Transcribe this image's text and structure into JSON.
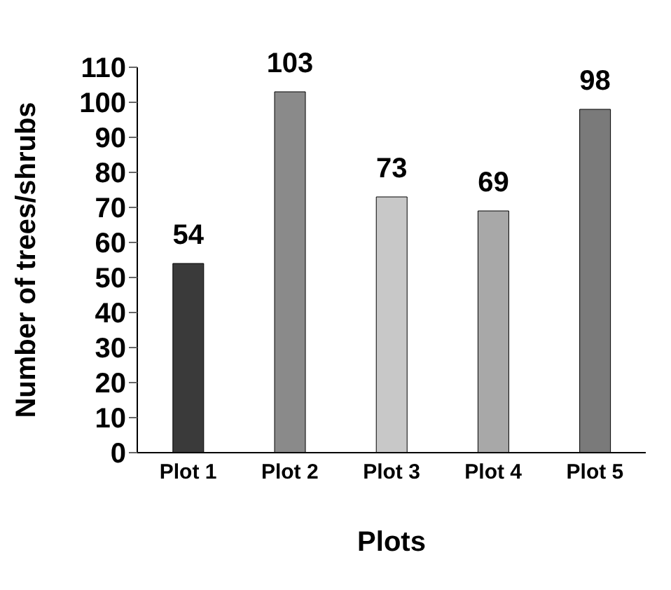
{
  "chart_data": {
    "type": "bar",
    "xlabel": "Plots",
    "ylabel": "Number of trees/shrubs",
    "categories": [
      "Plot 1",
      "Plot 2",
      "Plot 3",
      "Plot 4",
      "Plot 5"
    ],
    "values": [
      54,
      103,
      73,
      69,
      98
    ],
    "colors": [
      "#3a3a3a",
      "#8a8a8a",
      "#c8c8c8",
      "#a8a8a8",
      "#7a7a7a"
    ],
    "ylim": [
      0,
      110
    ],
    "yticks": [
      0,
      10,
      20,
      30,
      40,
      50,
      60,
      70,
      80,
      90,
      100,
      110
    ],
    "grid": false,
    "data_labels": true
  }
}
